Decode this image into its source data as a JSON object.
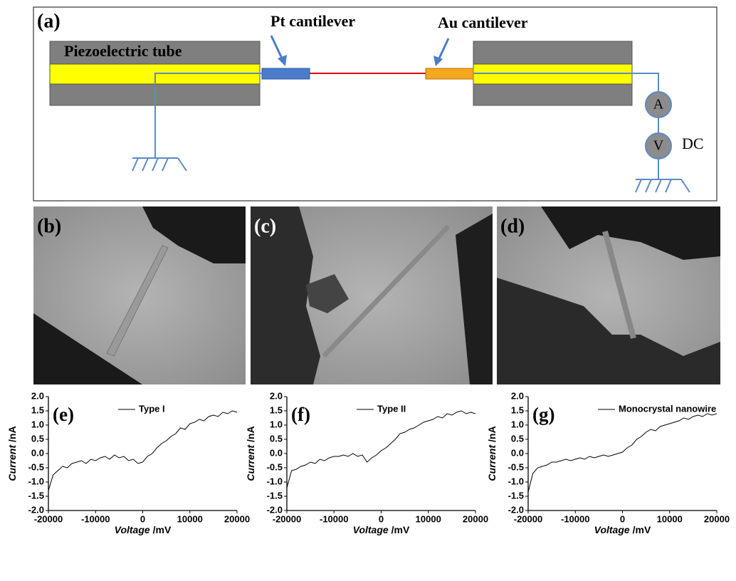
{
  "diagram": {
    "label": "(a)",
    "pt": "Pt cantilever",
    "au": "Au cantilever",
    "tube": "Piezoelectric tube",
    "ammeter": "A",
    "voltmeter": "V",
    "dc": "DC"
  },
  "images": [
    "(b)",
    "(c)",
    "(d)"
  ],
  "chart_data": [
    {
      "type": "line",
      "label": "(e)",
      "xlabel": [
        "Voltage",
        "/mV"
      ],
      "ylabel": [
        "Current",
        "/nA"
      ],
      "x": [
        -20000,
        -19000,
        -18000,
        -17000,
        -16000,
        -15000,
        -14000,
        -13000,
        -12000,
        -11000,
        -10000,
        -9000,
        -8000,
        -7000,
        -6000,
        -5000,
        -4000,
        -3000,
        -2000,
        -1000,
        0,
        1000,
        2000,
        3000,
        4000,
        5000,
        6000,
        7000,
        8000,
        9000,
        10000,
        11000,
        12000,
        13000,
        14000,
        15000,
        16000,
        17000,
        18000,
        19000,
        20000
      ],
      "series": [
        {
          "name": "Type I",
          "color": "#000000",
          "values": [
            -1.3,
            -0.75,
            -0.6,
            -0.45,
            -0.5,
            -0.35,
            -0.3,
            -0.25,
            -0.35,
            -0.2,
            -0.25,
            -0.15,
            -0.1,
            -0.2,
            -0.05,
            -0.15,
            -0.1,
            -0.25,
            -0.2,
            -0.35,
            -0.3,
            -0.1,
            0.0,
            0.2,
            0.35,
            0.45,
            0.6,
            0.7,
            0.9,
            0.85,
            1.05,
            1.1,
            1.2,
            1.15,
            1.3,
            1.35,
            1.3,
            1.45,
            1.4,
            1.5,
            1.45
          ]
        }
      ],
      "xlim": [
        -20000,
        20000
      ],
      "ylim": [
        -2,
        2
      ],
      "xticks": [
        -20000,
        -10000,
        0,
        10000,
        20000
      ],
      "yticks": [
        {
          "value": 2,
          "label": "2.0"
        },
        1.5,
        {
          "value": 1,
          "label": "1.0"
        },
        0.5,
        {
          "value": 0,
          "label": "0.0"
        },
        -0.5,
        {
          "value": -1,
          "label": "-1.0"
        },
        -1.5,
        {
          "value": -2,
          "label": "-2.0"
        }
      ]
    },
    {
      "type": "line",
      "label": "(f)",
      "xlabel": [
        "Voltage",
        "/mV"
      ],
      "ylabel": [
        "Current",
        "/nA"
      ],
      "x": [
        -20000,
        -19000,
        -18000,
        -17000,
        -16000,
        -15000,
        -14000,
        -13000,
        -12000,
        -11000,
        -10000,
        -9000,
        -8000,
        -7000,
        -6000,
        -5000,
        -4000,
        -3000,
        -2000,
        -1000,
        0,
        1000,
        2000,
        3000,
        4000,
        5000,
        6000,
        7000,
        8000,
        9000,
        10000,
        11000,
        12000,
        13000,
        14000,
        15000,
        16000,
        17000,
        18000,
        19000,
        20000
      ],
      "series": [
        {
          "name": "Type II",
          "color": "#000000",
          "values": [
            -1.2,
            -0.6,
            -0.55,
            -0.45,
            -0.4,
            -0.3,
            -0.35,
            -0.2,
            -0.25,
            -0.15,
            -0.1,
            -0.1,
            -0.05,
            -0.1,
            0.0,
            -0.1,
            -0.05,
            -0.3,
            -0.15,
            -0.05,
            0.1,
            0.2,
            0.35,
            0.5,
            0.7,
            0.75,
            0.85,
            0.9,
            1.0,
            1.1,
            1.15,
            1.2,
            1.3,
            1.25,
            1.4,
            1.35,
            1.45,
            1.5,
            1.4,
            1.45,
            1.4
          ]
        }
      ],
      "xlim": [
        -20000,
        20000
      ],
      "ylim": [
        -2,
        2
      ],
      "xticks": [
        -20000,
        -10000,
        0,
        10000,
        20000
      ],
      "yticks": [
        {
          "value": 2,
          "label": "2.0"
        },
        1.5,
        {
          "value": 1,
          "label": "1.0"
        },
        0.5,
        {
          "value": 0,
          "label": "0.0"
        },
        -0.5,
        {
          "value": -1,
          "label": "-1.0"
        },
        -1.5,
        {
          "value": -2,
          "label": "-2.0"
        }
      ]
    },
    {
      "type": "line",
      "label": "(g)",
      "xlabel": [
        "Voltage",
        "/mV"
      ],
      "ylabel": [
        "Current",
        "/nA"
      ],
      "x": [
        -20000,
        -19000,
        -18000,
        -17000,
        -16000,
        -15000,
        -14000,
        -13000,
        -12000,
        -11000,
        -10000,
        -9000,
        -8000,
        -7000,
        -6000,
        -5000,
        -4000,
        -3000,
        -2000,
        -1000,
        0,
        1000,
        2000,
        3000,
        4000,
        5000,
        6000,
        7000,
        8000,
        9000,
        10000,
        11000,
        12000,
        13000,
        14000,
        15000,
        16000,
        17000,
        18000,
        19000,
        20000
      ],
      "series": [
        {
          "name": "Monocrystal nanowire",
          "color": "#000000",
          "values": [
            -1.35,
            -0.7,
            -0.5,
            -0.45,
            -0.4,
            -0.3,
            -0.3,
            -0.25,
            -0.2,
            -0.25,
            -0.2,
            -0.15,
            -0.2,
            -0.1,
            -0.15,
            -0.1,
            -0.05,
            -0.1,
            -0.05,
            0.0,
            0.05,
            0.2,
            0.3,
            0.5,
            0.6,
            0.75,
            0.85,
            0.8,
            0.95,
            1.0,
            1.05,
            1.1,
            1.15,
            1.25,
            1.2,
            1.3,
            1.35,
            1.3,
            1.4,
            1.35,
            1.4
          ]
        }
      ],
      "xlim": [
        -20000,
        20000
      ],
      "ylim": [
        -2,
        2
      ],
      "xticks": [
        -20000,
        -10000,
        0,
        10000,
        20000
      ],
      "yticks": [
        {
          "value": 2,
          "label": "2.0"
        },
        1.5,
        {
          "value": 1,
          "label": "1.0"
        },
        0.5,
        {
          "value": 0,
          "label": "0.0"
        },
        -0.5,
        {
          "value": -1,
          "label": "-1.0"
        },
        -1.5,
        {
          "value": -2,
          "label": "-2.0"
        }
      ]
    }
  ]
}
